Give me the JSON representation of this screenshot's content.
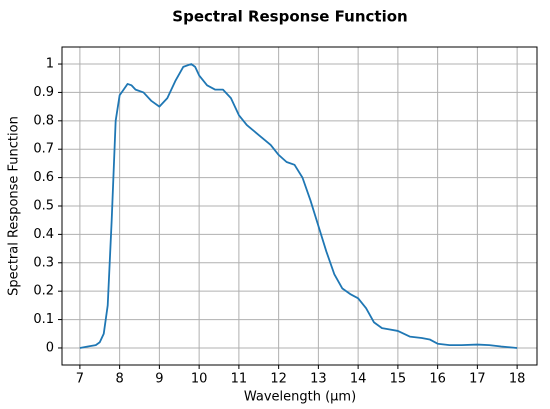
{
  "chart_data": {
    "type": "line",
    "title": "Spectral Response Function",
    "xlabel": "Wavelength (μm)",
    "ylabel": "Spectral Response Function",
    "x": [
      7.0,
      7.2,
      7.4,
      7.5,
      7.6,
      7.7,
      7.8,
      7.9,
      8.0,
      8.1,
      8.2,
      8.3,
      8.4,
      8.6,
      8.8,
      9.0,
      9.2,
      9.4,
      9.6,
      9.8,
      9.9,
      10.0,
      10.2,
      10.4,
      10.6,
      10.8,
      11.0,
      11.2,
      11.5,
      11.8,
      12.0,
      12.2,
      12.4,
      12.6,
      12.8,
      13.0,
      13.2,
      13.4,
      13.6,
      13.8,
      14.0,
      14.2,
      14.4,
      14.6,
      14.8,
      15.0,
      15.3,
      15.6,
      15.8,
      16.0,
      16.3,
      16.6,
      17.0,
      17.3,
      17.6,
      18.0
    ],
    "series": [
      {
        "name": "Spectral Response Function",
        "color": "#1f77b4",
        "values": [
          0,
          0.005,
          0.01,
          0.02,
          0.05,
          0.15,
          0.45,
          0.8,
          0.89,
          0.91,
          0.93,
          0.925,
          0.91,
          0.9,
          0.87,
          0.85,
          0.88,
          0.94,
          0.99,
          1.0,
          0.99,
          0.96,
          0.925,
          0.91,
          0.91,
          0.88,
          0.82,
          0.785,
          0.75,
          0.715,
          0.68,
          0.655,
          0.645,
          0.6,
          0.52,
          0.43,
          0.34,
          0.26,
          0.21,
          0.19,
          0.175,
          0.14,
          0.09,
          0.07,
          0.065,
          0.06,
          0.04,
          0.035,
          0.03,
          0.015,
          0.01,
          0.01,
          0.012,
          0.01,
          0.005,
          0
        ]
      }
    ],
    "xlim": [
      6.55,
      18.5
    ],
    "ylim": [
      -0.06,
      1.06
    ],
    "xticks": [
      7,
      8,
      9,
      10,
      11,
      12,
      13,
      14,
      15,
      16,
      17,
      18
    ],
    "yticks": [
      0,
      0.1,
      0.2,
      0.3,
      0.4,
      0.5,
      0.6,
      0.7,
      0.8,
      0.9,
      1
    ],
    "grid": true
  }
}
